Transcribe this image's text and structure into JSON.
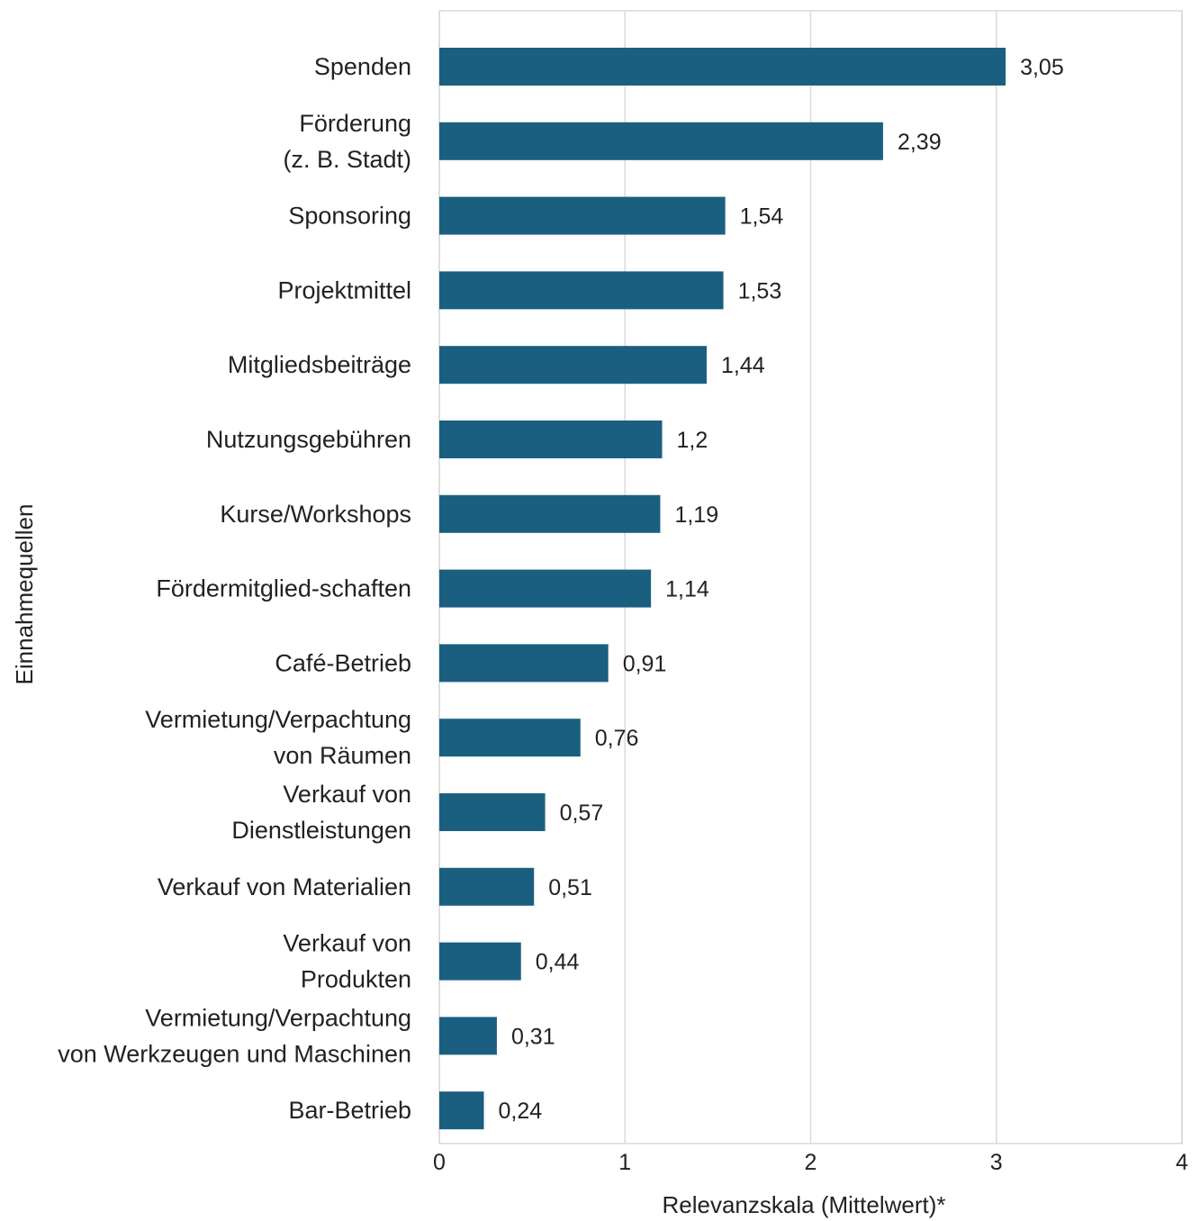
{
  "chart_data": {
    "type": "bar",
    "orientation": "horizontal",
    "categories": [
      [
        "Spenden"
      ],
      [
        "Förderung",
        "(z. B. Stadt)"
      ],
      [
        "Sponsoring"
      ],
      [
        "Projektmittel"
      ],
      [
        "Mitgliedsbeiträge"
      ],
      [
        "Nutzungsgebühren"
      ],
      [
        "Kurse/Workshops"
      ],
      [
        "Fördermitglied-schaften"
      ],
      [
        "Café-Betrieb"
      ],
      [
        "Vermietung/Verpachtung",
        "von Räumen"
      ],
      [
        "Verkauf von",
        "Dienstleistungen"
      ],
      [
        "Verkauf von Materialien"
      ],
      [
        "Verkauf von",
        "Produkten"
      ],
      [
        "Vermietung/Verpachtung",
        "von Werkzeugen und Maschinen"
      ],
      [
        "Bar-Betrieb"
      ]
    ],
    "values": [
      3.05,
      2.39,
      1.54,
      1.53,
      1.44,
      1.2,
      1.19,
      1.14,
      0.91,
      0.76,
      0.57,
      0.51,
      0.44,
      0.31,
      0.24
    ],
    "value_labels": [
      "3,05",
      "2,39",
      "1,54",
      "1,53",
      "1,44",
      "1,2",
      "1,19",
      "1,14",
      "0,91",
      "0,76",
      "0,57",
      "0,51",
      "0,44",
      "0,31",
      "0,24"
    ],
    "xlim": [
      0,
      4
    ],
    "xticks": [
      0,
      1,
      2,
      3,
      4
    ],
    "xtick_labels": [
      "0",
      "1",
      "2",
      "3",
      "4"
    ],
    "xlabel": "Relevanzskala (Mittelwert)*",
    "ylabel": "Einnahmequellen",
    "grid": true,
    "legend": "none",
    "bar_color": "#1a5f80"
  }
}
